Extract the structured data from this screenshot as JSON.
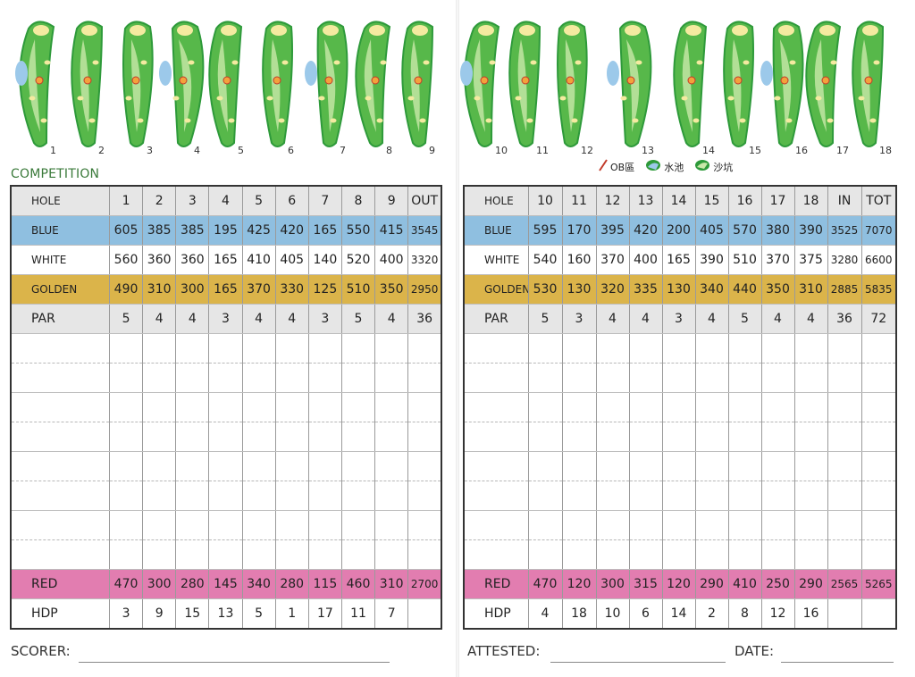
{
  "competition_label": "COMPETITION",
  "legend": [
    {
      "label": "OB區",
      "icon": "ob-line-icon"
    },
    {
      "label": "水池",
      "icon": "water-hazard-icon"
    },
    {
      "label": "沙坑",
      "icon": "bunker-icon"
    }
  ],
  "colors": {
    "blue": "#8fbfe0",
    "golden": "#dbb44a",
    "red": "#e27db0",
    "grey": "#e6e6e6",
    "fairway": "#2e9a3a",
    "rough": "#57b84a",
    "green": "#c9e8a9",
    "sand": "#f4eaa0",
    "water": "#9cc9ea",
    "ob": "#c23b2a"
  },
  "hole_map_labels_front": [
    "1",
    "2",
    "3",
    "4",
    "5",
    "6",
    "7",
    "8",
    "9"
  ],
  "hole_map_labels_back": [
    "10",
    "11",
    "12",
    "13",
    "14",
    "15",
    "16",
    "17",
    "18"
  ],
  "front": {
    "header": [
      "HOLE",
      "1",
      "2",
      "3",
      "4",
      "5",
      "6",
      "7",
      "8",
      "9",
      "OUT"
    ],
    "blue": [
      "BLUE",
      "605",
      "385",
      "385",
      "195",
      "425",
      "420",
      "165",
      "550",
      "415",
      "3545"
    ],
    "white": [
      "WHITE",
      "560",
      "360",
      "360",
      "165",
      "410",
      "405",
      "140",
      "520",
      "400",
      "3320"
    ],
    "golden": [
      "GOLDEN",
      "490",
      "310",
      "300",
      "165",
      "370",
      "330",
      "125",
      "510",
      "350",
      "2950"
    ],
    "par": [
      "PAR",
      "5",
      "4",
      "4",
      "3",
      "4",
      "4",
      "3",
      "5",
      "4",
      "36"
    ],
    "red": [
      "RED",
      "470",
      "300",
      "280",
      "145",
      "340",
      "280",
      "115",
      "460",
      "310",
      "2700"
    ],
    "hdp": [
      "HDP",
      "3",
      "9",
      "15",
      "13",
      "5",
      "1",
      "17",
      "11",
      "7",
      ""
    ]
  },
  "back": {
    "header": [
      "HOLE",
      "10",
      "11",
      "12",
      "13",
      "14",
      "15",
      "16",
      "17",
      "18",
      "IN",
      "TOT"
    ],
    "blue": [
      "BLUE",
      "595",
      "170",
      "395",
      "420",
      "200",
      "405",
      "570",
      "380",
      "390",
      "3525",
      "7070"
    ],
    "white": [
      "WHITE",
      "540",
      "160",
      "370",
      "400",
      "165",
      "390",
      "510",
      "370",
      "375",
      "3280",
      "6600"
    ],
    "golden": [
      "GOLDEN",
      "530",
      "130",
      "320",
      "335",
      "130",
      "340",
      "440",
      "350",
      "310",
      "2885",
      "5835"
    ],
    "par": [
      "PAR",
      "5",
      "3",
      "4",
      "4",
      "3",
      "4",
      "5",
      "4",
      "4",
      "36",
      "72"
    ],
    "red": [
      "RED",
      "470",
      "120",
      "300",
      "315",
      "120",
      "290",
      "410",
      "250",
      "290",
      "2565",
      "5265"
    ],
    "hdp": [
      "HDP",
      "4",
      "18",
      "10",
      "6",
      "14",
      "2",
      "8",
      "12",
      "16",
      "",
      ""
    ]
  },
  "footer": {
    "scorer": "SCORER:",
    "attested": "ATTESTED:",
    "date": "DATE:"
  }
}
